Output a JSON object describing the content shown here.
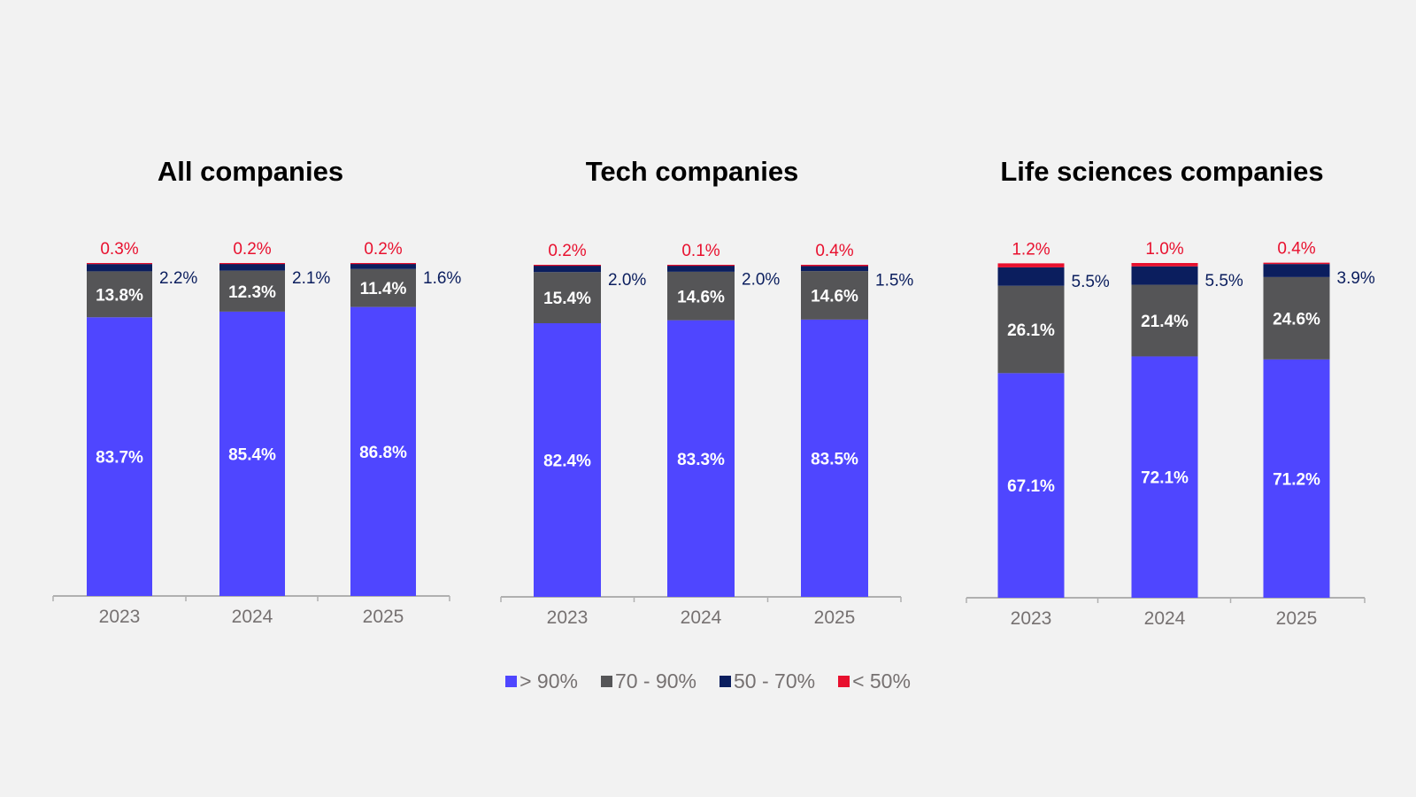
{
  "colors": {
    "gt90": "#4f46ff",
    "70to90": "#555557",
    "50to70": "#0b1e5e",
    "lt50": "#e8102e",
    "axis": "#b0b0b0",
    "tick_label": "#767171",
    "outside_label_dark": "#0b1e5e",
    "outside_label_red": "#e8102e",
    "inside_label": "#ffffff"
  },
  "legend": [
    {
      "name": "> 90%",
      "color_key": "gt90"
    },
    {
      "name": "70 - 90%",
      "color_key": "70to90"
    },
    {
      "name": "50 - 70%",
      "color_key": "50to70"
    },
    {
      "name": "< 50%",
      "color_key": "lt50"
    }
  ],
  "chart_data": [
    {
      "type": "bar",
      "stacked": true,
      "title": "All companies",
      "categories": [
        "2023",
        "2024",
        "2025"
      ],
      "series": [
        {
          "name": "> 90%",
          "values": [
            83.7,
            85.4,
            86.8
          ],
          "labels": [
            "83.7%",
            "85.4%",
            "86.8%"
          ]
        },
        {
          "name": "70 - 90%",
          "values": [
            13.8,
            12.3,
            11.4
          ],
          "labels": [
            "13.8%",
            "12.3%",
            "11.4%"
          ]
        },
        {
          "name": "50 - 70%",
          "values": [
            2.2,
            2.1,
            1.6
          ],
          "labels": [
            "2.2%",
            "2.1%",
            "1.6%"
          ]
        },
        {
          "name": "< 50%",
          "values": [
            0.3,
            0.2,
            0.2
          ],
          "labels": [
            "0.3%",
            "0.2%",
            "0.2%"
          ]
        }
      ],
      "ylim": [
        0,
        100
      ]
    },
    {
      "type": "bar",
      "stacked": true,
      "title": "Tech companies",
      "categories": [
        "2023",
        "2024",
        "2025"
      ],
      "series": [
        {
          "name": "> 90%",
          "values": [
            82.4,
            83.3,
            83.5
          ],
          "labels": [
            "82.4%",
            "83.3%",
            "83.5%"
          ]
        },
        {
          "name": "70 - 90%",
          "values": [
            15.4,
            14.6,
            14.6
          ],
          "labels": [
            "15.4%",
            "14.6%",
            "14.6%"
          ]
        },
        {
          "name": "50 - 70%",
          "values": [
            2.0,
            2.0,
            1.5
          ],
          "labels": [
            "2.0%",
            "2.0%",
            "1.5%"
          ]
        },
        {
          "name": "< 50%",
          "values": [
            0.2,
            0.1,
            0.4
          ],
          "labels": [
            "0.2%",
            "0.1%",
            "0.4%"
          ]
        }
      ],
      "ylim": [
        0,
        100
      ]
    },
    {
      "type": "bar",
      "stacked": true,
      "title": "Life sciences companies",
      "categories": [
        "2023",
        "2024",
        "2025"
      ],
      "series": [
        {
          "name": "> 90%",
          "values": [
            67.1,
            72.1,
            71.2
          ],
          "labels": [
            "67.1%",
            "72.1%",
            "71.2%"
          ]
        },
        {
          "name": "70 - 90%",
          "values": [
            26.1,
            21.4,
            24.6
          ],
          "labels": [
            "26.1%",
            "21.4%",
            "24.6%"
          ]
        },
        {
          "name": "50 - 70%",
          "values": [
            5.5,
            5.5,
            3.9
          ],
          "labels": [
            "5.5%",
            "5.5%",
            "3.9%"
          ]
        },
        {
          "name": "< 50%",
          "values": [
            1.2,
            1.0,
            0.4
          ],
          "labels": [
            "1.2%",
            "1.0%",
            "0.4%"
          ]
        }
      ],
      "ylim": [
        0,
        100
      ]
    }
  ]
}
